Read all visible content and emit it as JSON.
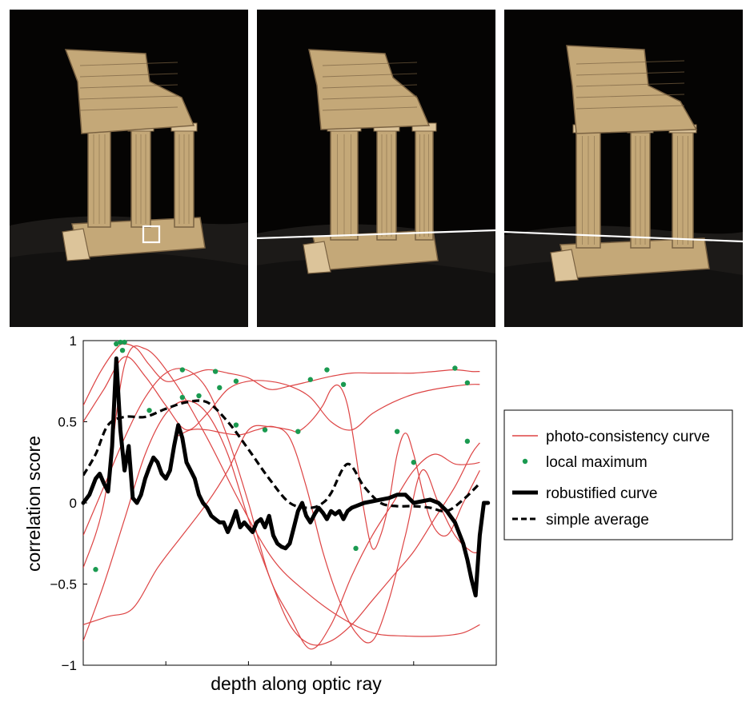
{
  "photos": [
    {
      "name": "reference-view",
      "features": {
        "selected_patch": true,
        "epipolar_line": false
      }
    },
    {
      "name": "second-view",
      "features": {
        "selected_patch": false,
        "epipolar_line": true
      }
    },
    {
      "name": "third-view",
      "features": {
        "selected_patch": false,
        "epipolar_line": true
      }
    }
  ],
  "chart_data": {
    "type": "line",
    "xlabel": "depth along optic ray",
    "ylabel": "correlation score",
    "xlim": [
      0,
      100
    ],
    "ylim": [
      -1,
      1
    ],
    "yticks": [
      {
        "value": 1,
        "label": "1"
      },
      {
        "value": 0.5,
        "label": "0.5"
      },
      {
        "value": 0,
        "label": "0"
      },
      {
        "value": -0.5,
        "label": "−0.5"
      },
      {
        "value": -1,
        "label": "−1"
      }
    ],
    "xticks": [
      0,
      20,
      40,
      60,
      80,
      100
    ],
    "legend_position": "right",
    "legend": [
      {
        "label": "photo-consistency curve",
        "style": "thin-red"
      },
      {
        "label": "local maximum",
        "style": "green-dot"
      },
      {
        "label": "robustified curve",
        "style": "thick-black"
      },
      {
        "label": "simple average",
        "style": "dashed-black"
      }
    ],
    "colors": {
      "photo_curve": "#dd4444",
      "local_max": "#1a9a50",
      "robust": "#000000",
      "average": "#000000"
    },
    "photo_consistency_curves": [
      {
        "x": [
          0,
          5,
          10,
          15,
          22,
          30,
          38,
          46,
          54,
          62,
          70,
          78,
          86,
          92,
          96
        ],
        "y": [
          -0.4,
          0.0,
          0.85,
          0.95,
          0.75,
          0.4,
          0.0,
          -0.35,
          -0.55,
          -0.7,
          -0.8,
          -0.82,
          -0.82,
          -0.8,
          -0.75
        ]
      },
      {
        "x": [
          0,
          4,
          8,
          10,
          13,
          16,
          20,
          25,
          30,
          35,
          40,
          45,
          50,
          55,
          60,
          65,
          70,
          75,
          80,
          85,
          90,
          94,
          96
        ],
        "y": [
          0.6,
          0.8,
          0.95,
          0.98,
          0.95,
          0.85,
          0.75,
          0.78,
          0.82,
          0.8,
          0.77,
          0.7,
          0.72,
          0.75,
          0.78,
          0.8,
          0.8,
          0.8,
          0.8,
          0.81,
          0.82,
          0.81,
          0.81
        ]
      },
      {
        "x": [
          0,
          5,
          10,
          15,
          20,
          25,
          30,
          35,
          40,
          45,
          50,
          55,
          60,
          65,
          70,
          75,
          80,
          85,
          90,
          94,
          96
        ],
        "y": [
          0.5,
          0.7,
          0.9,
          0.78,
          0.6,
          0.45,
          0.55,
          0.7,
          0.75,
          0.75,
          0.72,
          0.65,
          0.5,
          0.45,
          0.55,
          0.62,
          0.67,
          0.7,
          0.72,
          0.73,
          0.73
        ]
      },
      {
        "x": [
          0,
          5,
          10,
          15,
          20,
          25,
          30,
          35,
          40,
          45,
          50,
          55,
          60,
          65,
          70,
          75,
          80,
          85,
          90,
          94,
          96
        ],
        "y": [
          -0.85,
          -0.5,
          -0.1,
          0.3,
          0.55,
          0.63,
          0.55,
          0.3,
          -0.1,
          -0.45,
          -0.75,
          -0.87,
          -0.85,
          -0.75,
          -0.6,
          -0.45,
          -0.3,
          -0.1,
          0.1,
          0.3,
          0.37
        ]
      },
      {
        "x": [
          0,
          5,
          10,
          15,
          20,
          25,
          30,
          35,
          40,
          45,
          50,
          55,
          60,
          65,
          70,
          75,
          80,
          85,
          90,
          94,
          96
        ],
        "y": [
          -0.2,
          0.1,
          0.4,
          0.65,
          0.8,
          0.82,
          0.7,
          0.4,
          0.0,
          -0.45,
          -0.7,
          -0.9,
          -0.75,
          -0.45,
          -0.2,
          0.0,
          0.2,
          0.3,
          0.24,
          0.24,
          0.25
        ]
      },
      {
        "x": [
          0,
          6,
          12,
          18,
          24,
          30,
          35,
          40,
          45,
          50,
          52,
          55,
          58,
          60,
          62,
          64,
          66,
          68,
          70,
          72,
          74,
          76,
          78,
          80,
          84,
          88,
          92,
          96
        ],
        "y": [
          -0.75,
          -0.7,
          -0.65,
          -0.4,
          -0.2,
          0.0,
          0.2,
          0.45,
          0.47,
          0.45,
          0.44,
          0.5,
          0.6,
          0.7,
          0.72,
          0.6,
          0.3,
          -0.05,
          -0.28,
          -0.2,
          0.0,
          0.3,
          0.43,
          0.3,
          -0.1,
          -0.2,
          0.0,
          0.2
        ]
      },
      {
        "x": [
          22,
          26,
          30,
          34,
          38,
          42,
          46,
          50,
          54,
          58,
          62,
          66,
          70,
          74,
          78,
          82,
          86,
          90,
          94,
          96
        ],
        "y": [
          0.4,
          0.45,
          0.45,
          0.43,
          0.42,
          0.45,
          0.47,
          0.4,
          0.1,
          -0.3,
          -0.6,
          -0.8,
          -0.85,
          -0.6,
          -0.2,
          0.2,
          0.0,
          -0.2,
          -0.3,
          -0.3
        ]
      }
    ],
    "local_maxima": [
      {
        "x": 8,
        "y": 0.98
      },
      {
        "x": 9,
        "y": 0.99
      },
      {
        "x": 9.5,
        "y": 0.94
      },
      {
        "x": 10,
        "y": 0.99
      },
      {
        "x": 16,
        "y": 0.57
      },
      {
        "x": 24,
        "y": 0.82
      },
      {
        "x": 24,
        "y": 0.65
      },
      {
        "x": 28,
        "y": 0.66
      },
      {
        "x": 32,
        "y": 0.81
      },
      {
        "x": 33,
        "y": 0.71
      },
      {
        "x": 37,
        "y": 0.75
      },
      {
        "x": 37,
        "y": 0.48
      },
      {
        "x": 44,
        "y": 0.45
      },
      {
        "x": 52,
        "y": 0.44
      },
      {
        "x": 55,
        "y": 0.76
      },
      {
        "x": 59,
        "y": 0.82
      },
      {
        "x": 63,
        "y": 0.73
      },
      {
        "x": 66,
        "y": -0.28
      },
      {
        "x": 76,
        "y": 0.44
      },
      {
        "x": 80,
        "y": 0.25
      },
      {
        "x": 90,
        "y": 0.83
      },
      {
        "x": 93,
        "y": 0.74
      },
      {
        "x": 93,
        "y": 0.38
      },
      {
        "x": 3,
        "y": -0.41
      }
    ],
    "robustified_curve": {
      "x": [
        0,
        1.5,
        3,
        4,
        5,
        6,
        7,
        8,
        9,
        10,
        11,
        12,
        13,
        14,
        15,
        16,
        17,
        18,
        19,
        20,
        21,
        22,
        23,
        24,
        25,
        26,
        27,
        28,
        29,
        30,
        31,
        32,
        33,
        34,
        35,
        36,
        37,
        38,
        39,
        40,
        41,
        42,
        43,
        44,
        45,
        46,
        47,
        48,
        49,
        50,
        51,
        52,
        53,
        54,
        55,
        56,
        57,
        58,
        59,
        60,
        61,
        62,
        63,
        64,
        65,
        66,
        68,
        70,
        72,
        74,
        76,
        78,
        80,
        82,
        84,
        86,
        88,
        90,
        92,
        93,
        94,
        95,
        96,
        97,
        98
      ],
      "y": [
        0,
        0.05,
        0.15,
        0.18,
        0.12,
        0.07,
        0.35,
        0.89,
        0.45,
        0.2,
        0.35,
        0.03,
        0.0,
        0.05,
        0.15,
        0.22,
        0.28,
        0.25,
        0.18,
        0.15,
        0.2,
        0.35,
        0.48,
        0.4,
        0.25,
        0.2,
        0.15,
        0.05,
        0.0,
        -0.03,
        -0.08,
        -0.1,
        -0.12,
        -0.12,
        -0.18,
        -0.12,
        -0.05,
        -0.15,
        -0.12,
        -0.15,
        -0.18,
        -0.12,
        -0.1,
        -0.15,
        -0.08,
        -0.2,
        -0.25,
        -0.27,
        -0.28,
        -0.25,
        -0.15,
        -0.05,
        0.0,
        -0.08,
        -0.12,
        -0.07,
        -0.03,
        -0.06,
        -0.1,
        -0.05,
        -0.07,
        -0.05,
        -0.1,
        -0.05,
        -0.03,
        -0.02,
        0.0,
        0.01,
        0.02,
        0.03,
        0.05,
        0.05,
        0.0,
        0.01,
        0.02,
        0.0,
        -0.05,
        -0.12,
        -0.25,
        -0.35,
        -0.47,
        -0.57,
        -0.2,
        0.0,
        0.0
      ]
    },
    "simple_average_curve": {
      "x": [
        0,
        3,
        6,
        10,
        15,
        20,
        25,
        30,
        35,
        40,
        45,
        50,
        55,
        58,
        60,
        64,
        68,
        72,
        76,
        80,
        84,
        88,
        92,
        96
      ],
      "y": [
        0.17,
        0.3,
        0.48,
        0.53,
        0.53,
        0.58,
        0.62,
        0.62,
        0.5,
        0.33,
        0.15,
        0.0,
        -0.03,
        0.0,
        0.06,
        0.24,
        0.1,
        0.0,
        -0.02,
        -0.02,
        -0.03,
        -0.05,
        0.02,
        0.12
      ]
    }
  }
}
